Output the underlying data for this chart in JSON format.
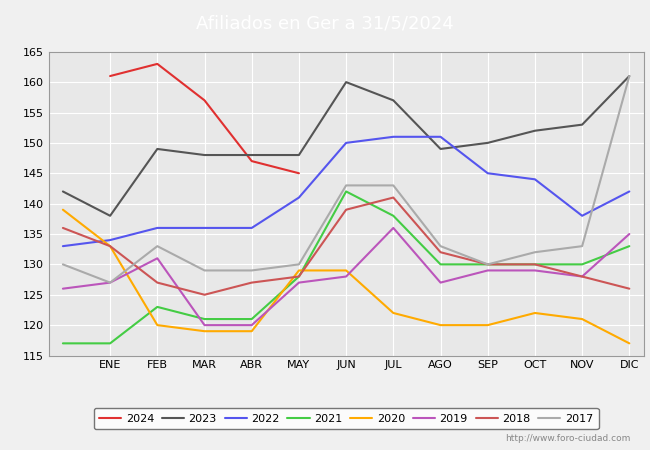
{
  "title": "Afiliados en Ger a 31/5/2024",
  "title_bg_color": "#4f86c6",
  "ylim": [
    115,
    165
  ],
  "yticks": [
    115,
    120,
    125,
    130,
    135,
    140,
    145,
    150,
    155,
    160,
    165
  ],
  "months": [
    "ENE",
    "FEB",
    "MAR",
    "ABR",
    "MAY",
    "JUN",
    "JUL",
    "AGO",
    "SEP",
    "OCT",
    "NOV",
    "DIC"
  ],
  "series": {
    "2024": {
      "color": "#e03030",
      "linewidth": 1.5,
      "data": [
        null,
        161,
        163,
        157,
        147,
        145,
        null,
        null,
        null,
        null,
        null,
        null,
        null
      ]
    },
    "2023": {
      "color": "#555555",
      "linewidth": 1.5,
      "data": [
        142,
        138,
        149,
        148,
        148,
        148,
        160,
        157,
        149,
        150,
        152,
        153,
        161
      ]
    },
    "2022": {
      "color": "#5555ee",
      "linewidth": 1.5,
      "data": [
        133,
        134,
        136,
        136,
        136,
        141,
        150,
        151,
        151,
        145,
        144,
        138,
        142
      ]
    },
    "2021": {
      "color": "#44cc44",
      "linewidth": 1.5,
      "data": [
        117,
        117,
        123,
        121,
        121,
        128,
        142,
        138,
        130,
        130,
        130,
        130,
        133
      ]
    },
    "2020": {
      "color": "#ffaa00",
      "linewidth": 1.5,
      "data": [
        139,
        133,
        120,
        119,
        119,
        129,
        129,
        122,
        120,
        120,
        122,
        121,
        117
      ]
    },
    "2019": {
      "color": "#bb55bb",
      "linewidth": 1.5,
      "data": [
        126,
        127,
        131,
        120,
        120,
        127,
        128,
        136,
        127,
        129,
        129,
        128,
        135
      ]
    },
    "2018": {
      "color": "#cc5555",
      "linewidth": 1.5,
      "data": [
        136,
        133,
        127,
        125,
        127,
        128,
        139,
        141,
        132,
        130,
        130,
        128,
        126
      ]
    },
    "2017": {
      "color": "#aaaaaa",
      "linewidth": 1.5,
      "data": [
        130,
        127,
        133,
        129,
        129,
        130,
        143,
        143,
        133,
        130,
        132,
        133,
        161
      ]
    }
  },
  "background_color": "#f0f0f0",
  "plot_bg_color": "#e8e8e8",
  "grid_color": "#ffffff",
  "url_text": "http://www.foro-ciudad.com",
  "legend_order": [
    "2024",
    "2023",
    "2022",
    "2021",
    "2020",
    "2019",
    "2018",
    "2017"
  ]
}
